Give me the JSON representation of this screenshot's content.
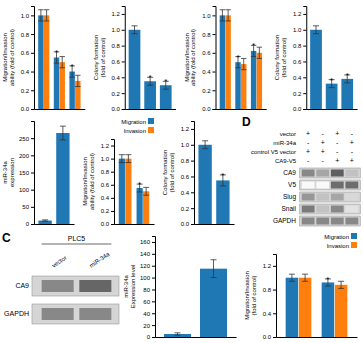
{
  "chart_data": [
    {
      "type": "bar",
      "ylabel": "Migration/Invasion\nability (fold of control)",
      "categories": [
        null,
        null,
        null
      ],
      "series": [
        {
          "values": [
            1.0,
            0.55,
            0.4
          ],
          "errors": [
            0.06,
            0.06,
            0.06
          ]
        },
        {
          "values": [
            1.0,
            0.5,
            0.3
          ],
          "errors": [
            0.06,
            0.06,
            0.06
          ]
        }
      ],
      "ylim": [
        0,
        1.1
      ],
      "yticks": [
        {
          "value": 0,
          "label": "0.0"
        },
        0.2,
        0.4,
        0.6,
        0.8,
        {
          "value": 1.0,
          "label": "1.0"
        }
      ],
      "tick_labels": "y",
      "annotations": [
        {
          "text": "*",
          "series": 0,
          "index": 1
        },
        {
          "text": "*",
          "series": 0,
          "index": 2
        }
      ]
    },
    {
      "type": "bar",
      "ylabel": "Colony formation\n(fold of control)",
      "categories": [
        null,
        null,
        null
      ],
      "values": [
        1.0,
        0.35,
        0.3
      ],
      "errors": [
        0.05,
        0.05,
        0.05
      ],
      "ylim": [
        0,
        1.3
      ],
      "yticks": [
        {
          "value": 0,
          "label": "0.0"
        },
        0.2,
        0.4,
        0.6,
        0.8,
        {
          "value": 1.0,
          "label": "1.0"
        },
        1.2
      ],
      "tick_labels": "y",
      "annotations": [
        {
          "text": "*",
          "index": 1
        },
        {
          "text": "*",
          "index": 2
        }
      ]
    },
    {
      "type": "bar",
      "ylabel": "Migration/Invasion\nability (fold of control)",
      "categories": [
        null,
        null,
        null
      ],
      "series": [
        {
          "values": [
            1.0,
            0.5,
            0.62
          ],
          "errors": [
            0.06,
            0.06,
            0.06
          ]
        },
        {
          "values": [
            1.0,
            0.48,
            0.6
          ],
          "errors": [
            0.06,
            0.06,
            0.06
          ]
        }
      ],
      "ylim": [
        0,
        1.1
      ],
      "yticks": [
        {
          "value": 0,
          "label": "0.0"
        },
        0.2,
        0.4,
        0.6,
        0.8,
        {
          "value": 1.0,
          "label": "1.0"
        }
      ],
      "tick_labels": "y",
      "annotations": [
        {
          "text": "*",
          "series": 0,
          "index": 1
        },
        {
          "text": "*",
          "series": 0,
          "index": 2
        }
      ]
    },
    {
      "type": "bar",
      "ylabel": "Colony formation\n(fold of control)",
      "categories": [
        null,
        null,
        null
      ],
      "values": [
        1.0,
        0.32,
        0.38
      ],
      "errors": [
        0.05,
        0.05,
        0.05
      ],
      "ylim": [
        0,
        1.3
      ],
      "yticks": [
        {
          "value": 0,
          "label": "0.0"
        },
        0.2,
        0.4,
        0.6,
        0.8,
        {
          "value": 1.0,
          "label": "1.0"
        },
        1.2
      ],
      "tick_labels": "y",
      "annotations": [
        {
          "text": "*",
          "index": 1
        },
        {
          "text": "*",
          "index": 2
        }
      ]
    },
    {
      "type": "bar",
      "ylabel": "miR-34a\nexpression",
      "categories": [
        null,
        null
      ],
      "values": [
        10,
        265
      ],
      "errors": [
        2,
        20
      ],
      "ylim": [
        0,
        300
      ],
      "yticks": [
        0,
        50,
        100,
        150,
        200,
        250
      ],
      "tick_labels": "y"
    },
    {
      "type": "bar",
      "ylabel": "Migration/Invasion\nability (fold of control)",
      "categories": [
        null,
        null
      ],
      "series": [
        {
          "name": "Migration",
          "values": [
            1.0,
            0.55
          ],
          "errors": [
            0.06,
            0.06
          ]
        },
        {
          "name": "Invasion",
          "values": [
            1.0,
            0.5
          ],
          "errors": [
            0.06,
            0.06
          ]
        }
      ],
      "ylim": [
        0,
        1.3
      ],
      "yticks": [
        {
          "value": 0,
          "label": "0.0"
        },
        0.2,
        0.4,
        0.6,
        0.8,
        {
          "value": 1.0,
          "label": "1.0"
        },
        1.2
      ],
      "tick_labels": "y",
      "legend": "upper right",
      "annotations": [
        {
          "text": "*",
          "series": 0,
          "index": 1
        }
      ]
    },
    {
      "type": "bar",
      "ylabel": "Colony formation\n(fold of control)",
      "categories": [
        null,
        null
      ],
      "values": [
        1.0,
        0.55
      ],
      "errors": [
        0.05,
        0.07
      ],
      "ylim": [
        0,
        1.3
      ],
      "yticks": [
        {
          "value": 0,
          "label": "0.0"
        },
        0.2,
        0.4,
        0.6,
        0.8,
        {
          "value": 1.0,
          "label": "1.0"
        },
        1.2
      ],
      "tick_labels": "y",
      "annotations": [
        {
          "text": "*",
          "index": 1
        }
      ]
    },
    {
      "type": "blot",
      "title": "C",
      "group": "PLC5",
      "lanes": [
        "vector",
        "miR-34a"
      ],
      "rows": [
        "CA9",
        "GAPDH"
      ],
      "colors": [
        [
          "#888888",
          "#666666"
        ],
        [
          "#888888",
          "#888888"
        ]
      ]
    },
    {
      "type": "bar",
      "ylabel": "miR-34a\nExpression level",
      "categories": [
        null,
        null
      ],
      "values": [
        5,
        115
      ],
      "errors": [
        2,
        15
      ],
      "ylim": [
        0,
        170
      ],
      "yticks": [
        0,
        20,
        40,
        60,
        80,
        100,
        120,
        140,
        160
      ],
      "tick_labels": "y"
    },
    {
      "type": "bar",
      "ylabel": "Migration/Invasion\n(fold of control)",
      "categories": [
        null,
        null
      ],
      "series": [
        {
          "name": "Migration",
          "values": [
            1.0,
            0.92
          ],
          "errors": [
            0.06,
            0.06
          ]
        },
        {
          "name": "Invasion",
          "values": [
            1.0,
            0.88
          ],
          "errors": [
            0.06,
            0.06
          ]
        }
      ],
      "ylim": [
        0,
        1.4
      ],
      "yticks": [
        {
          "value": 0.0,
          "label": "0.0"
        },
        0.4,
        0.8,
        1.2
      ],
      "tick_labels": "y",
      "legend": "upper right",
      "annotations": [
        {
          "text": "*",
          "series": 0,
          "index": 1
        }
      ]
    },
    {
      "type": "blot",
      "title": "D",
      "conditions": [
        {
          "name": "vector",
          "signs": [
            "+",
            "-",
            "+",
            "-"
          ]
        },
        {
          "name": "miR-34a",
          "signs": [
            "-",
            "+",
            "-",
            "+"
          ]
        },
        {
          "name": "control V5 vector",
          "signs": [
            "+",
            "+",
            "-",
            "-"
          ]
        },
        {
          "name": "CA9-V5",
          "signs": [
            "-",
            "-",
            "+",
            "+"
          ]
        }
      ],
      "rows": [
        "CA9",
        "V5",
        "Slug",
        "Snail",
        "GAPDH"
      ],
      "values": [
        [
          0.55,
          0.45,
          0.7,
          0.35
        ],
        [
          0.05,
          0.05,
          0.65,
          0.65
        ],
        [
          0.5,
          0.35,
          0.45,
          0.25
        ],
        [
          0.6,
          0.35,
          0.55,
          0.2
        ],
        [
          0.55,
          0.55,
          0.55,
          0.55
        ]
      ]
    }
  ]
}
